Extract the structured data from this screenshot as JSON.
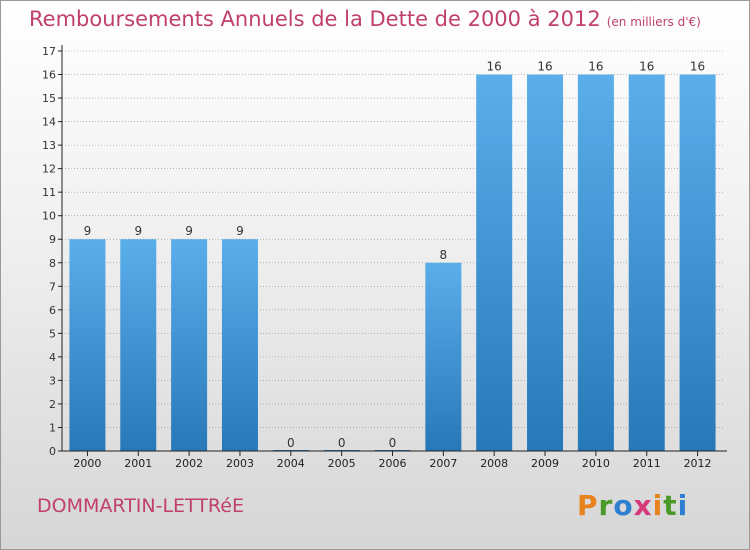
{
  "title": "Remboursements Annuels de la Dette de 2000 à 2012",
  "subtitle": "(en milliers d'€)",
  "commune": "DOMMARTIN-LETTRéE",
  "brand": "Proxiti",
  "colors": {
    "title": "#c0406b",
    "bar_top": "#5aaeea",
    "bar_bottom": "#2778b8",
    "axis": "#222222",
    "grid": "#8a8a8a"
  },
  "chart_data": {
    "type": "bar",
    "categories": [
      "2000",
      "2001",
      "2002",
      "2003",
      "2004",
      "2005",
      "2006",
      "2007",
      "2008",
      "2009",
      "2010",
      "2011",
      "2012"
    ],
    "values": [
      9,
      9,
      9,
      9,
      0,
      0,
      0,
      8,
      16,
      16,
      16,
      16,
      16
    ],
    "ylim": [
      0,
      17
    ],
    "yticks": [
      0,
      1,
      2,
      3,
      4,
      5,
      6,
      7,
      8,
      9,
      10,
      11,
      12,
      13,
      14,
      15,
      16,
      17
    ],
    "grid": true,
    "data_labels": true
  }
}
